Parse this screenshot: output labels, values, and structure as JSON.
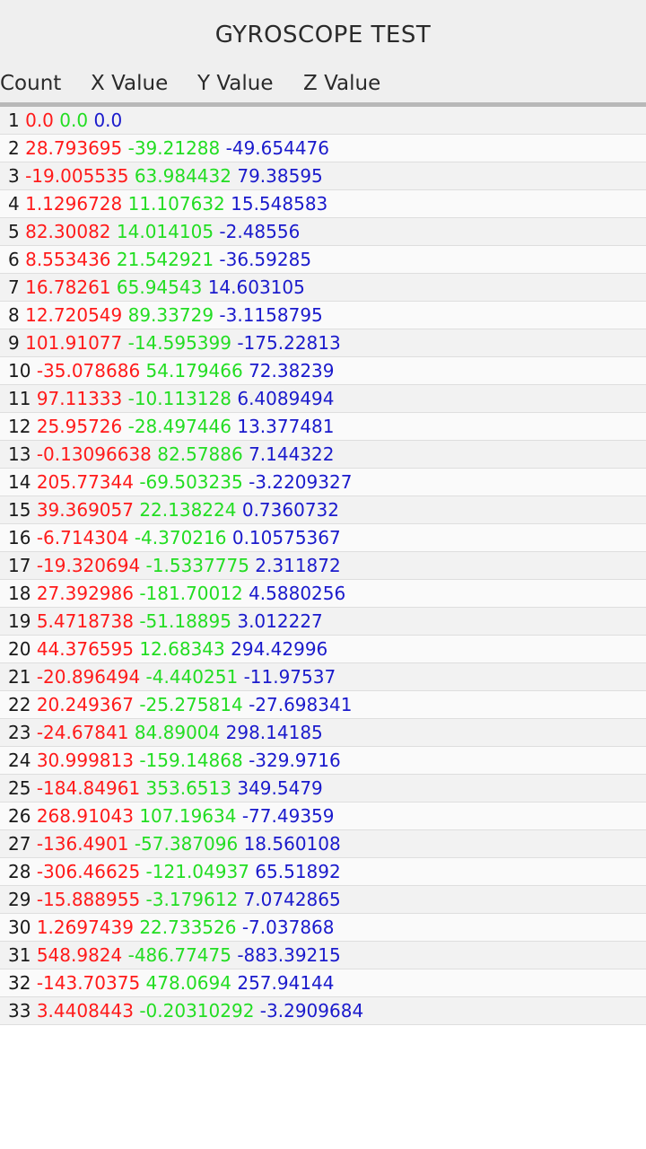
{
  "app": {
    "title": "GYROSCOPE TEST"
  },
  "header": {
    "count": "Count",
    "x": "X Value",
    "y": "Y Value",
    "z": "Z Value"
  },
  "colors": {
    "x": "#ff1a1a",
    "y": "#22dd22",
    "z": "#1a1acc"
  },
  "rows": [
    {
      "n": "1",
      "x": "0.0",
      "y": "0.0",
      "z": "0.0"
    },
    {
      "n": "2",
      "x": "28.793695",
      "y": "-39.21288",
      "z": "-49.654476"
    },
    {
      "n": "3",
      "x": "-19.005535",
      "y": "63.984432",
      "z": "79.38595"
    },
    {
      "n": "4",
      "x": "1.1296728",
      "y": "11.107632",
      "z": "15.548583"
    },
    {
      "n": "5",
      "x": "82.30082",
      "y": "14.014105",
      "z": "-2.48556"
    },
    {
      "n": "6",
      "x": "8.553436",
      "y": "21.542921",
      "z": "-36.59285"
    },
    {
      "n": "7",
      "x": "16.78261",
      "y": "65.94543",
      "z": "14.603105"
    },
    {
      "n": "8",
      "x": "12.720549",
      "y": "89.33729",
      "z": "-3.1158795"
    },
    {
      "n": "9",
      "x": "101.91077",
      "y": "-14.595399",
      "z": "-175.22813"
    },
    {
      "n": "10",
      "x": "-35.078686",
      "y": "54.179466",
      "z": "72.38239"
    },
    {
      "n": "11",
      "x": "97.11333",
      "y": "-10.113128",
      "z": "6.4089494"
    },
    {
      "n": "12",
      "x": "25.95726",
      "y": "-28.497446",
      "z": "13.377481"
    },
    {
      "n": "13",
      "x": "-0.13096638",
      "y": "82.57886",
      "z": "7.144322"
    },
    {
      "n": "14",
      "x": "205.77344",
      "y": "-69.503235",
      "z": "-3.2209327"
    },
    {
      "n": "15",
      "x": "39.369057",
      "y": "22.138224",
      "z": "0.7360732"
    },
    {
      "n": "16",
      "x": "-6.714304",
      "y": "-4.370216",
      "z": "0.10575367"
    },
    {
      "n": "17",
      "x": "-19.320694",
      "y": "-1.5337775",
      "z": "2.311872"
    },
    {
      "n": "18",
      "x": "27.392986",
      "y": "-181.70012",
      "z": "4.5880256"
    },
    {
      "n": "19",
      "x": "5.4718738",
      "y": "-51.18895",
      "z": "3.012227"
    },
    {
      "n": "20",
      "x": "44.376595",
      "y": "12.68343",
      "z": "294.42996"
    },
    {
      "n": "21",
      "x": "-20.896494",
      "y": "-4.440251",
      "z": "-11.97537"
    },
    {
      "n": "22",
      "x": "20.249367",
      "y": "-25.275814",
      "z": "-27.698341"
    },
    {
      "n": "23",
      "x": "-24.67841",
      "y": "84.89004",
      "z": "298.14185"
    },
    {
      "n": "24",
      "x": "30.999813",
      "y": "-159.14868",
      "z": "-329.9716"
    },
    {
      "n": "25",
      "x": "-184.84961",
      "y": "353.6513",
      "z": "349.5479"
    },
    {
      "n": "26",
      "x": "268.91043",
      "y": "107.19634",
      "z": "-77.49359"
    },
    {
      "n": "27",
      "x": "-136.4901",
      "y": "-57.387096",
      "z": "18.560108"
    },
    {
      "n": "28",
      "x": "-306.46625",
      "y": "-121.04937",
      "z": "65.51892"
    },
    {
      "n": "29",
      "x": "-15.888955",
      "y": "-3.179612",
      "z": "7.0742865"
    },
    {
      "n": "30",
      "x": "1.2697439",
      "y": "22.733526",
      "z": "-7.037868"
    },
    {
      "n": "31",
      "x": "548.9824",
      "y": "-486.77475",
      "z": "-883.39215"
    },
    {
      "n": "32",
      "x": "-143.70375",
      "y": "478.0694",
      "z": "257.94144"
    },
    {
      "n": "33",
      "x": "3.4408443",
      "y": "-0.20310292",
      "z": "-3.2909684"
    }
  ]
}
